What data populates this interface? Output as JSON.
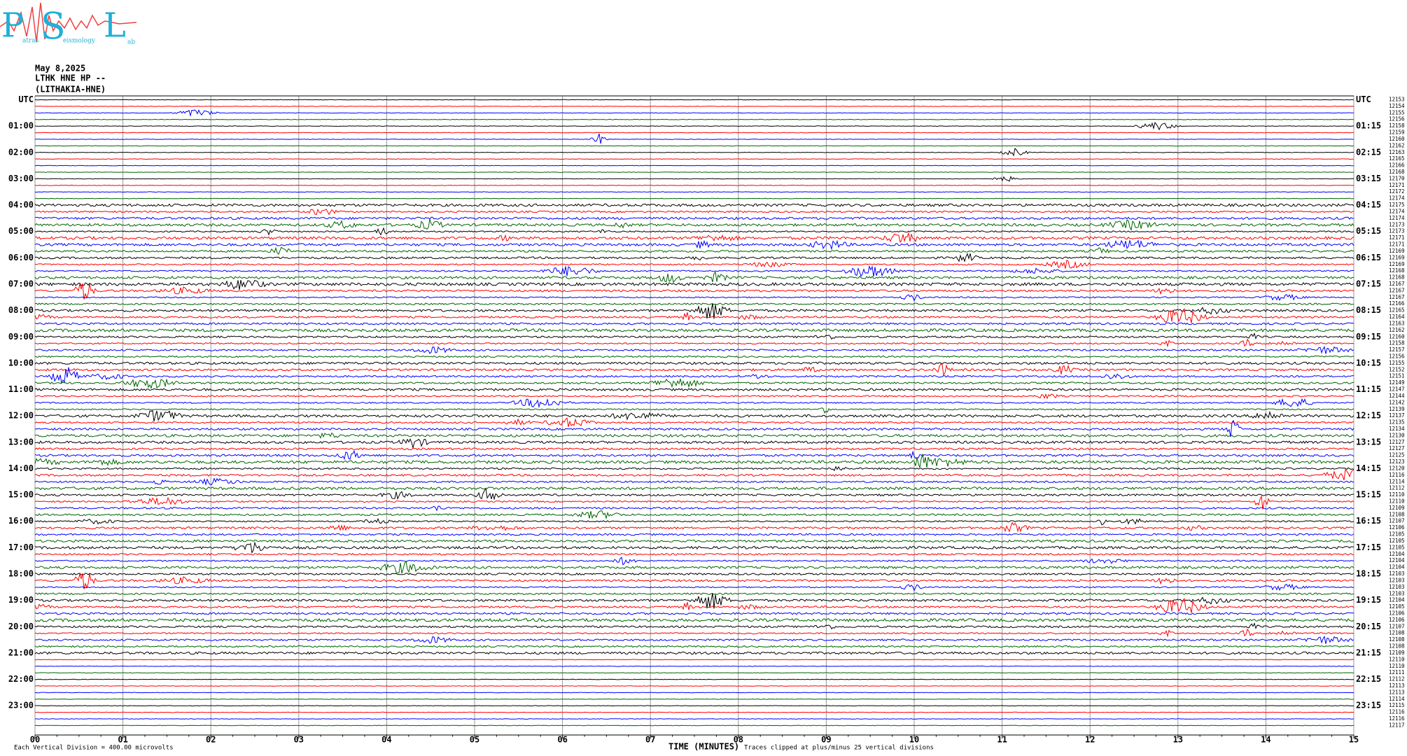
{
  "logo": {
    "letters": [
      "P",
      "S",
      "L"
    ],
    "words": [
      "atras",
      "eismology",
      "ab"
    ]
  },
  "header": {
    "date": "May 8,2025",
    "station": "LTHK HNE HP --",
    "site": "(LITHAKIA-HNE)"
  },
  "left_labels": [
    "UTC",
    "01:00",
    "02:00",
    "03:00",
    "04:00",
    "05:00",
    "06:00",
    "07:00",
    "08:00",
    "09:00",
    "10:00",
    "11:00",
    "12:00",
    "13:00",
    "14:00",
    "15:00",
    "16:00",
    "17:00",
    "18:00",
    "19:00",
    "20:00",
    "21:00",
    "22:00",
    "23:00"
  ],
  "right_labels": [
    "UTC",
    "01:15",
    "02:15",
    "03:15",
    "04:15",
    "05:15",
    "06:15",
    "07:15",
    "08:15",
    "09:15",
    "10:15",
    "11:15",
    "12:15",
    "13:15",
    "14:15",
    "15:15",
    "16:15",
    "17:15",
    "18:15",
    "19:15",
    "20:15",
    "21:15",
    "22:15",
    "23:15"
  ],
  "trace_counts": [
    12153,
    12154,
    12155,
    12156,
    12158,
    12159,
    12160,
    12162,
    12163,
    12165,
    12166,
    12168,
    12170,
    12171,
    12172,
    12174,
    12175,
    12174,
    12174,
    12173,
    12173,
    12171,
    12171,
    12169,
    12169,
    12169,
    12168,
    12168,
    12167,
    12167,
    12167,
    12166,
    12165,
    12164,
    12163,
    12162,
    12160,
    12158,
    12157,
    12156,
    12155,
    12152,
    12151,
    12149,
    12147,
    12144,
    12142,
    12139,
    12137,
    12135,
    12134,
    12130,
    12127,
    12127,
    12125,
    12123,
    12120,
    12116,
    12114,
    12112,
    12110,
    12110,
    12109,
    12108,
    12107,
    12106,
    12105,
    12105,
    12105,
    12104,
    12104,
    12104,
    12103,
    12103,
    12103,
    12103,
    12104,
    12105,
    12106,
    12106,
    12107,
    12108,
    12108,
    12108,
    12109,
    12110,
    12110,
    12111,
    12112,
    12113,
    12113,
    12114,
    12115,
    12116,
    12116,
    12117
  ],
  "x_ticks": [
    "00",
    "01",
    "02",
    "03",
    "04",
    "05",
    "06",
    "07",
    "08",
    "09",
    "10",
    "11",
    "12",
    "13",
    "14",
    "15"
  ],
  "footer": {
    "scale": "Each Vertical Division =  400.00 microvolts",
    "axis_title": "TIME (MINUTES)",
    "clip_note": "Traces clipped at plus/minus 25 vertical divisions"
  }
}
